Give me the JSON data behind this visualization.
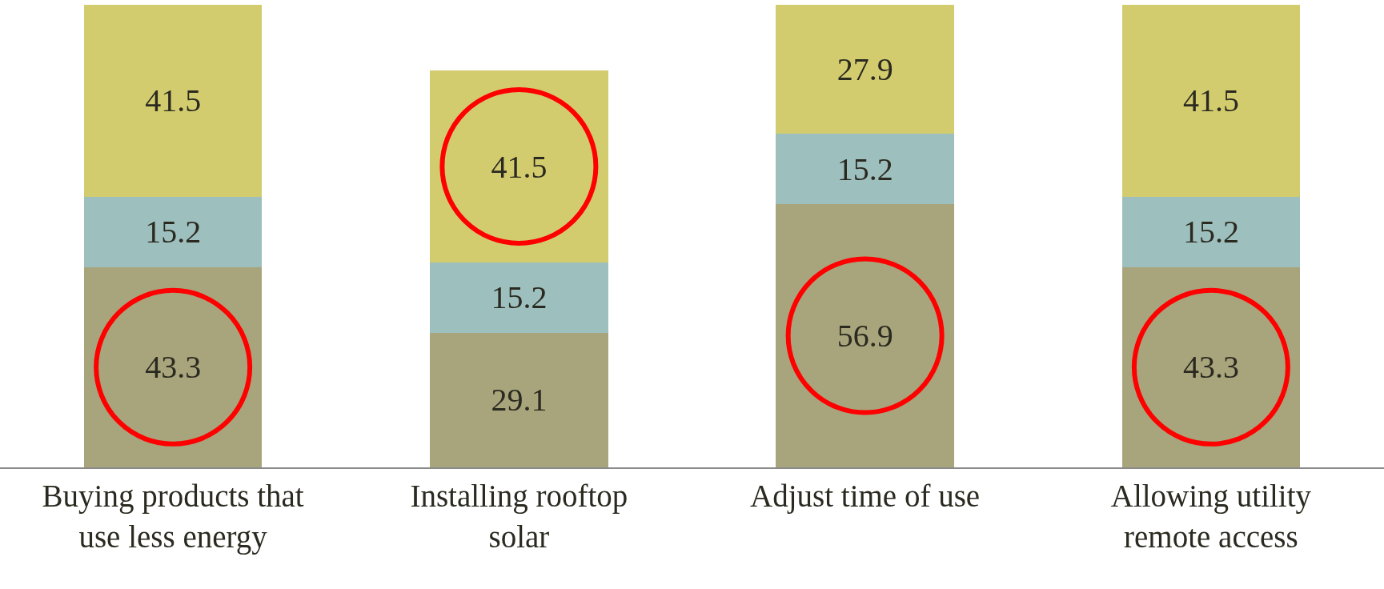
{
  "chart_data": {
    "type": "bar",
    "stacked": true,
    "categories": [
      "Buying products that use less energy",
      "Installing rooftop solar",
      "Adjust time of use",
      "Allowing utility remote access"
    ],
    "series": [
      {
        "color": "#a8a57c",
        "values": [
          43.3,
          29.1,
          56.9,
          43.3
        ]
      },
      {
        "color": "#9dbfbd",
        "values": [
          15.2,
          15.2,
          15.2,
          15.2
        ]
      },
      {
        "color": "#d3cc6e",
        "values": [
          41.5,
          41.5,
          27.9,
          41.5
        ]
      }
    ],
    "ylim": [
      0,
      100
    ],
    "tick_labels": "x",
    "data_labels": true
  }
}
